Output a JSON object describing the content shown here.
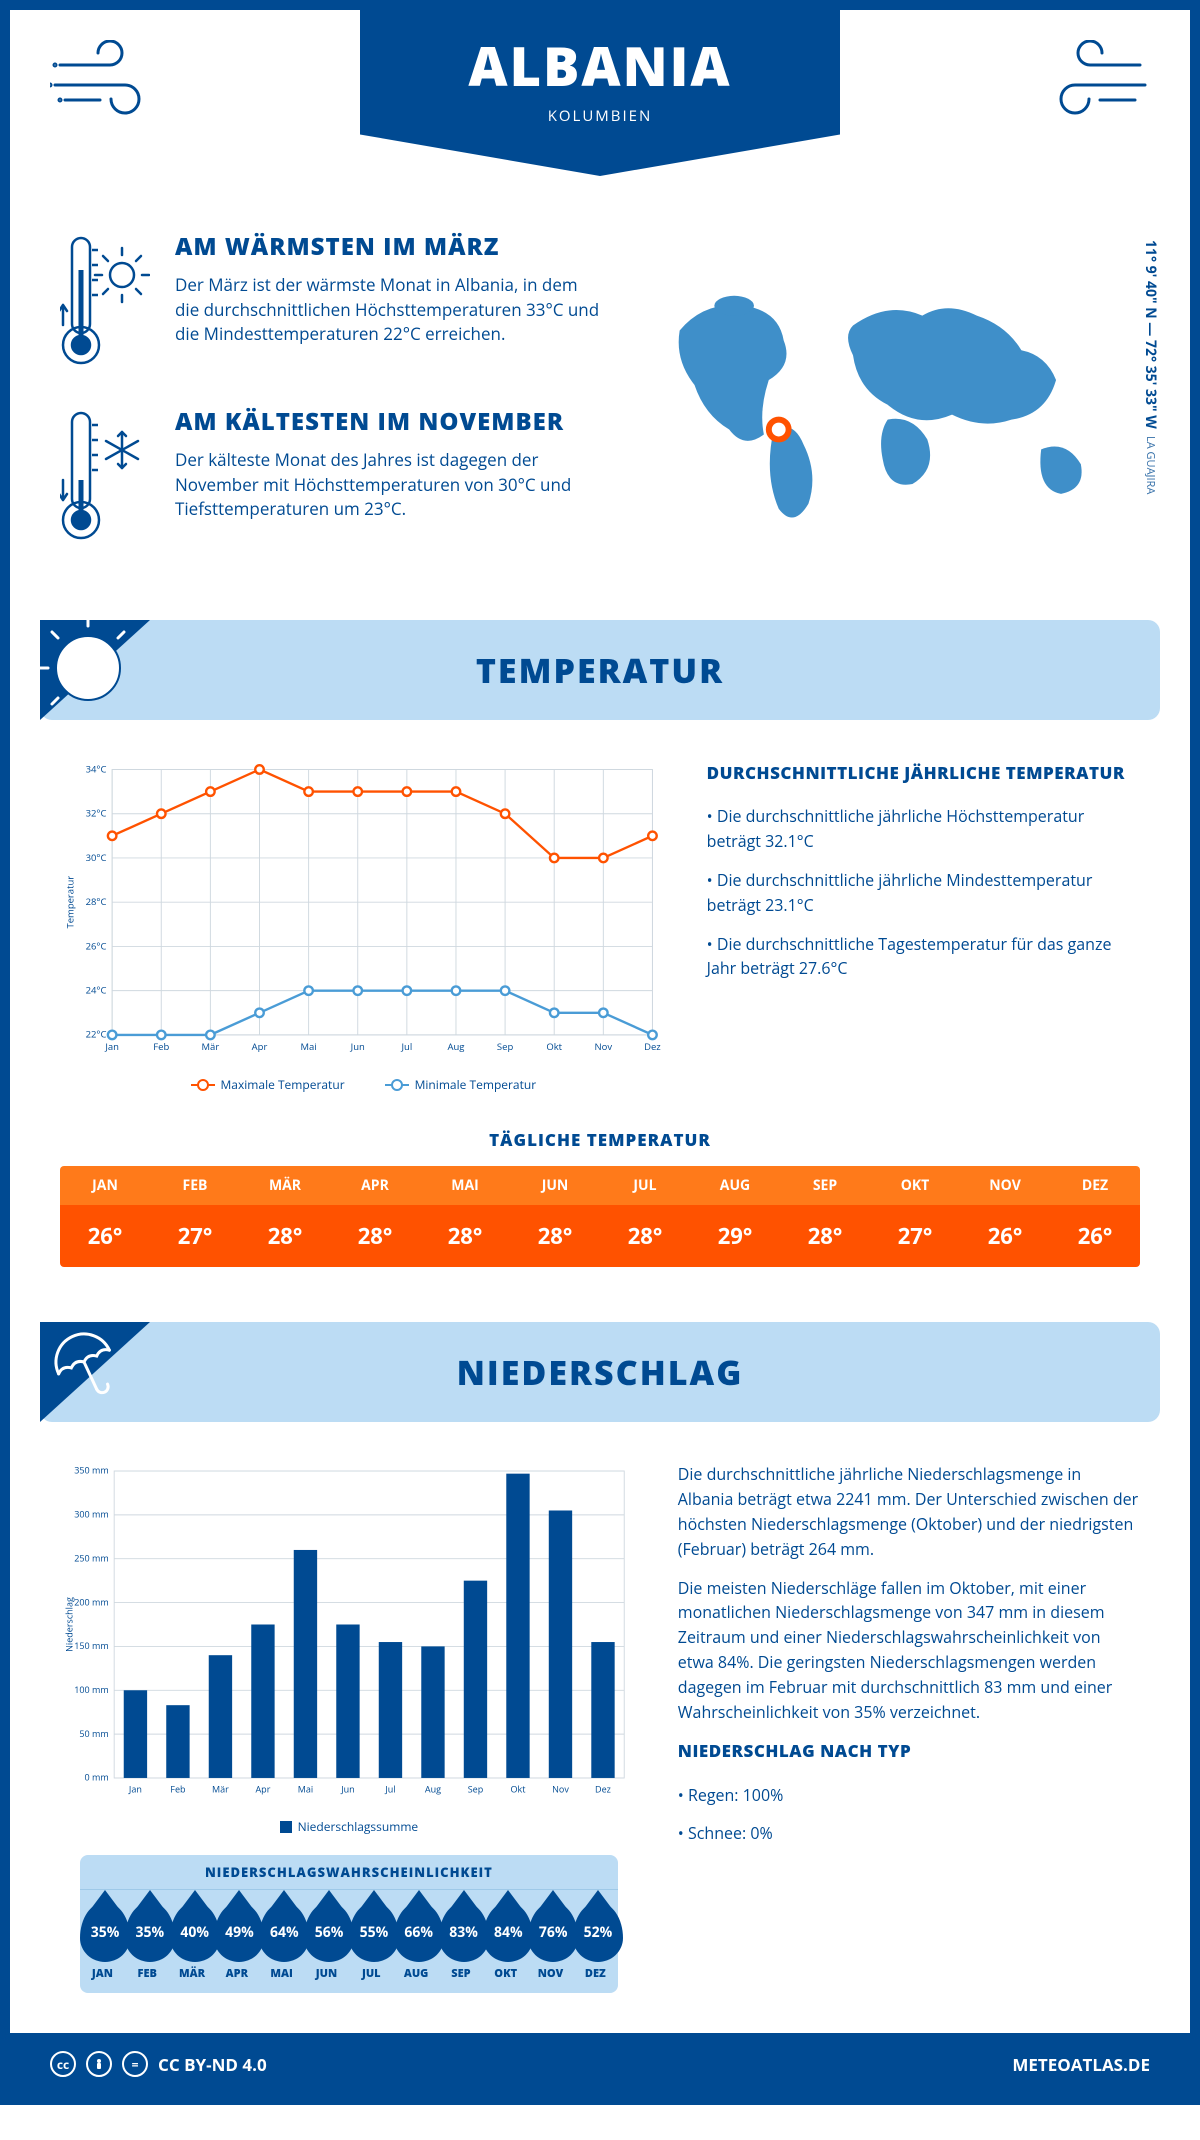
{
  "colors": {
    "brand": "#004a92",
    "brand_light": "#bcdcf4",
    "map_blue": "#3f8fc9",
    "map_marker": "#ff5200",
    "temp_max": "#ff5200",
    "temp_min": "#4a9cd6",
    "temp_row_head": "#ff7a1a",
    "temp_row_val": "#ff5200",
    "white": "#ffffff",
    "grid": "#cfd8df"
  },
  "header": {
    "title": "ALBANIA",
    "subtitle": "KOLUMBIEN"
  },
  "coords": {
    "lat": "11° 9' 40\" N",
    "sep": "—",
    "lon": "72° 35' 33\" W",
    "region": "LA GUAJIRA"
  },
  "facts": {
    "warm": {
      "title": "AM WÄRMSTEN IM MÄRZ",
      "body": "Der März ist der wärmste Monat in Albania, in dem die durchschnittlichen Höchsttemperaturen 33°C und die Mindesttemperaturen 22°C erreichen."
    },
    "cold": {
      "title": "AM KÄLTESTEN IM NOVEMBER",
      "body": "Der kälteste Monat des Jahres ist dagegen der November mit Höchsttemperaturen von 30°C und Tiefsttemperaturen um 23°C."
    }
  },
  "temp_section": {
    "title": "TEMPERATUR",
    "chart": {
      "type": "line",
      "ylabel": "Temperatur",
      "y_ticks": [
        22,
        24,
        26,
        28,
        30,
        32,
        34
      ],
      "y_tick_labels": [
        "22°C",
        "24°C",
        "26°C",
        "28°C",
        "30°C",
        "32°C",
        "34°C"
      ],
      "x_labels": [
        "Jan",
        "Feb",
        "Mär",
        "Apr",
        "Mai",
        "Jun",
        "Jul",
        "Aug",
        "Sep",
        "Okt",
        "Nov",
        "Dez"
      ],
      "series": [
        {
          "name": "Maximale Temperatur",
          "color": "#ff5200",
          "values": [
            31,
            32,
            33,
            34,
            33,
            33,
            33,
            33,
            32,
            30,
            30,
            31
          ]
        },
        {
          "name": "Minimale Temperatur",
          "color": "#4a9cd6",
          "values": [
            22,
            22,
            22,
            23,
            24,
            24,
            24,
            24,
            24,
            23,
            23,
            22
          ]
        }
      ],
      "ylim": [
        22,
        34
      ],
      "grid_color": "#cfd8df",
      "label_fontsize": 10
    },
    "legend_max": "Maximale Temperatur",
    "legend_min": "Minimale Temperatur",
    "desc": {
      "heading": "DURCHSCHNITTLICHE JÄHRLICHE TEMPERATUR",
      "bullets": [
        "• Die durchschnittliche jährliche Höchsttemperatur beträgt 32.1°C",
        "• Die durchschnittliche jährliche Mindesttemperatur beträgt 23.1°C",
        "• Die durchschnittliche Tagestemperatur für das ganze Jahr beträgt 27.6°C"
      ]
    }
  },
  "daily_temp": {
    "title": "TÄGLICHE TEMPERATUR",
    "months": [
      "JAN",
      "FEB",
      "MÄR",
      "APR",
      "MAI",
      "JUN",
      "JUL",
      "AUG",
      "SEP",
      "OKT",
      "NOV",
      "DEZ"
    ],
    "values": [
      "26°",
      "27°",
      "28°",
      "28°",
      "28°",
      "28°",
      "28°",
      "29°",
      "28°",
      "27°",
      "26°",
      "26°"
    ]
  },
  "precip_section": {
    "title": "NIEDERSCHLAG",
    "chart": {
      "type": "bar",
      "ylabel": "Niederschlag",
      "x_labels": [
        "Jan",
        "Feb",
        "Mär",
        "Apr",
        "Mai",
        "Jun",
        "Jul",
        "Aug",
        "Sep",
        "Okt",
        "Nov",
        "Dez"
      ],
      "y_ticks": [
        0,
        50,
        100,
        150,
        200,
        250,
        300,
        350
      ],
      "y_tick_labels": [
        "0 mm",
        "50 mm",
        "100 mm",
        "150 mm",
        "200 mm",
        "250 mm",
        "300 mm",
        "350 mm"
      ],
      "values": [
        100,
        83,
        140,
        175,
        260,
        175,
        155,
        150,
        225,
        347,
        305,
        155
      ],
      "bar_color": "#004a92",
      "ylim": [
        0,
        350
      ],
      "grid_color": "#cfd8df",
      "bar_width": 0.55,
      "legend": "Niederschlagssumme"
    },
    "desc1": "Die durchschnittliche jährliche Niederschlagsmenge in Albania beträgt etwa 2241 mm. Der Unterschied zwischen der höchsten Niederschlagsmenge (Oktober) und der niedrigsten (Februar) beträgt 264 mm.",
    "desc2": "Die meisten Niederschläge fallen im Oktober, mit einer monatlichen Niederschlagsmenge von 347 mm in diesem Zeitraum und einer Niederschlagswahrscheinlichkeit von etwa 84%. Die geringsten Niederschlagsmengen werden dagegen im Februar mit durchschnittlich 83 mm und einer Wahrscheinlichkeit von 35% verzeichnet.",
    "by_type_title": "NIEDERSCHLAG NACH TYP",
    "by_type": [
      "• Regen: 100%",
      "• Schnee: 0%"
    ]
  },
  "precip_prob": {
    "title": "NIEDERSCHLAGSWAHRSCHEINLICHKEIT",
    "months": [
      "JAN",
      "FEB",
      "MÄR",
      "APR",
      "MAI",
      "JUN",
      "JUL",
      "AUG",
      "SEP",
      "OKT",
      "NOV",
      "DEZ"
    ],
    "values": [
      "35%",
      "35%",
      "40%",
      "49%",
      "64%",
      "56%",
      "55%",
      "66%",
      "83%",
      "84%",
      "76%",
      "52%"
    ]
  },
  "footer": {
    "license": "CC BY-ND 4.0",
    "site": "METEOATLAS.DE"
  }
}
